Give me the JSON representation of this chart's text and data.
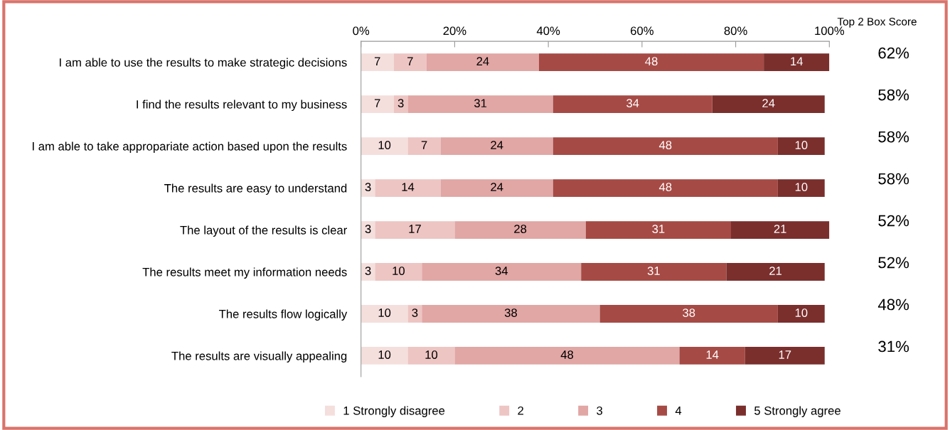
{
  "chart_data": {
    "type": "bar",
    "orientation": "horizontal",
    "stacked": true,
    "data_labels": true,
    "grid": false,
    "legend": "bottom",
    "marker": "square",
    "categories": [
      "I am able to use the results to make strategic decisions",
      "I find the results relevant to my business",
      "I am able to take appropariate action based upon the results",
      "The results are easy to understand",
      "The layout of the results is clear",
      "The results meet my information needs",
      "The results flow logically",
      "The results are visually appealing"
    ],
    "xlim": [
      0,
      100
    ],
    "xticks": [
      {
        "value": 0,
        "label": "0%"
      },
      {
        "value": 20,
        "label": "20%"
      },
      {
        "value": 40,
        "label": "40%"
      },
      {
        "value": 60,
        "label": "60%"
      },
      {
        "value": 80,
        "label": "80%"
      },
      {
        "value": 100,
        "label": "100%"
      }
    ],
    "series": [
      {
        "name": "1 Strongly disagree",
        "color": "#f4dfdd",
        "values": [
          7,
          7,
          10,
          3,
          3,
          3,
          10,
          10
        ]
      },
      {
        "name": "2",
        "color": "#edc5c3",
        "values": [
          7,
          3,
          7,
          14,
          17,
          10,
          3,
          10
        ]
      },
      {
        "name": "3",
        "color": "#e1a7a5",
        "values": [
          24,
          31,
          24,
          24,
          28,
          34,
          38,
          48
        ]
      },
      {
        "name": "4",
        "color": "#a64a45",
        "values": [
          48,
          34,
          48,
          48,
          31,
          31,
          38,
          14
        ]
      },
      {
        "name": "5 Strongly agree",
        "color": "#7a2f2d",
        "values": [
          14,
          24,
          10,
          10,
          21,
          21,
          10,
          17
        ]
      }
    ],
    "annotations": [
      "Top 2 Box Score",
      "62%",
      "58%",
      "58%",
      "58%",
      "52%",
      "52%",
      "48%",
      "31%"
    ]
  }
}
